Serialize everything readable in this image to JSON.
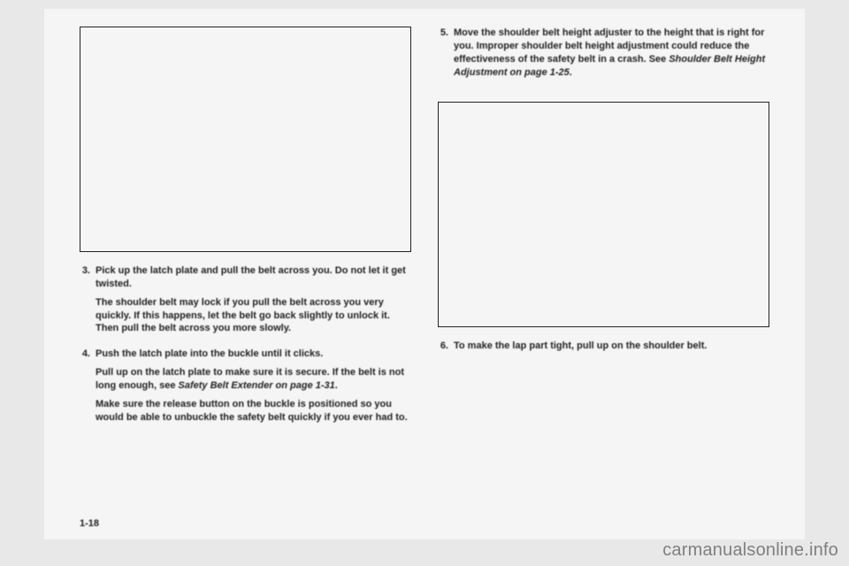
{
  "left": {
    "step3": {
      "num": "3.",
      "p1": "Pick up the latch plate and pull the belt across you. Do not let it get twisted.",
      "p2": "The shoulder belt may lock if you pull the belt across you very quickly. If this happens, let the belt go back slightly to unlock it. Then pull the belt across you more slowly."
    },
    "step4": {
      "num": "4.",
      "p1": "Push the latch plate into the buckle until it clicks.",
      "p2a": "Pull up on the latch plate to make sure it is secure. If the belt is not long enough, see ",
      "p2b": "Safety Belt Extender on page 1-31",
      "p2c": ".",
      "p3": "Make sure the release button on the buckle is positioned so you would be able to unbuckle the safety belt quickly if you ever had to."
    }
  },
  "right": {
    "step5": {
      "num": "5.",
      "p1a": "Move the shoulder belt height adjuster to the height that is right for you. Improper shoulder belt height adjustment could reduce the effectiveness of the safety belt in a crash. See ",
      "p1b": "Shoulder Belt Height Adjustment on page 1-25",
      "p1c": "."
    },
    "step6": {
      "num": "6.",
      "p1": "To make the lap part tight, pull up on the shoulder belt."
    }
  },
  "pageNum": "1-18",
  "watermark": "carmanualsonline.info"
}
